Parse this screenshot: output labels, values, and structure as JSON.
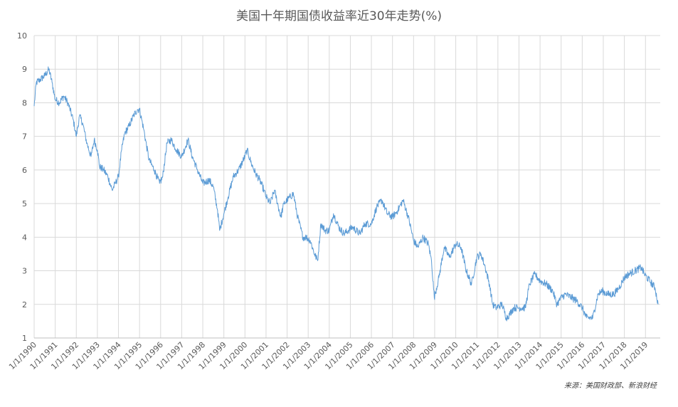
{
  "chart_data": {
    "type": "line",
    "title": "美国十年期国债收益率近30年走势(%)",
    "source": "来源：美国财政部、新浪财经",
    "xlabel": "",
    "ylabel": "",
    "ylim": [
      1,
      10
    ],
    "yticks": [
      "1",
      "2",
      "3",
      "4",
      "5",
      "6",
      "7",
      "8",
      "9",
      "10"
    ],
    "xlim": [
      1990.0,
      2019.7
    ],
    "xtick_labels": [
      "1/1/1990",
      "1/1/1991",
      "1/1/1992",
      "1/1/1993",
      "1/1/1994",
      "1/1/1995",
      "1/1/1996",
      "1/1/1997",
      "1/1/1998",
      "1/1/1999",
      "1/1/2000",
      "1/1/2001",
      "1/1/2002",
      "1/1/2003",
      "1/1/2004",
      "1/1/2005",
      "1/1/2006",
      "1/1/2007",
      "1/1/2008",
      "1/1/2009",
      "1/1/2010",
      "1/1/2011",
      "1/1/2012",
      "1/1/2013",
      "1/1/2014",
      "1/1/2015",
      "1/1/2016",
      "1/1/2017",
      "1/1/2018",
      "1/1/2019"
    ],
    "grid": true,
    "line_color": "#5b9bd5",
    "series": [
      {
        "name": "",
        "x": [
          1990.0,
          1990.1,
          1990.3,
          1990.5,
          1990.7,
          1990.85,
          1991.0,
          1991.2,
          1991.4,
          1991.6,
          1991.85,
          1992.0,
          1992.15,
          1992.3,
          1992.5,
          1992.7,
          1992.85,
          1993.0,
          1993.1,
          1993.3,
          1993.5,
          1993.7,
          1993.85,
          1994.0,
          1994.15,
          1994.3,
          1994.5,
          1994.7,
          1994.9,
          1995.0,
          1995.2,
          1995.45,
          1995.7,
          1995.95,
          1996.1,
          1996.3,
          1996.5,
          1996.75,
          1997.0,
          1997.3,
          1997.5,
          1997.75,
          1998.0,
          1998.3,
          1998.5,
          1998.7,
          1998.8,
          1999.0,
          1999.2,
          1999.45,
          1999.7,
          2000.0,
          2000.1,
          2000.3,
          2000.5,
          2000.7,
          2000.9,
          2001.0,
          2001.2,
          2001.4,
          2001.7,
          2001.85,
          2002.0,
          2002.3,
          2002.5,
          2002.75,
          2002.9,
          2003.1,
          2003.3,
          2003.45,
          2003.6,
          2003.8,
          2004.0,
          2004.2,
          2004.45,
          2004.7,
          2004.9,
          2005.1,
          2005.45,
          2005.7,
          2006.0,
          2006.25,
          2006.5,
          2006.75,
          2007.0,
          2007.25,
          2007.5,
          2007.75,
          2008.0,
          2008.2,
          2008.45,
          2008.7,
          2008.85,
          2008.98,
          2009.2,
          2009.45,
          2009.7,
          2010.0,
          2010.25,
          2010.5,
          2010.75,
          2011.0,
          2011.2,
          2011.4,
          2011.6,
          2011.75,
          2011.9,
          2012.2,
          2012.4,
          2012.55,
          2012.75,
          2013.0,
          2013.3,
          2013.5,
          2013.75,
          2014.0,
          2014.3,
          2014.6,
          2014.8,
          2015.0,
          2015.2,
          2015.5,
          2015.75,
          2016.0,
          2016.2,
          2016.5,
          2016.75,
          2016.95,
          2017.2,
          2017.5,
          2017.75,
          2018.0,
          2018.2,
          2018.5,
          2018.8,
          2018.95,
          2019.2,
          2019.45,
          2019.6
        ],
        "values": [
          7.9,
          8.6,
          8.7,
          8.8,
          9.0,
          8.6,
          8.1,
          8.0,
          8.2,
          8.0,
          7.5,
          7.0,
          7.6,
          7.4,
          6.8,
          6.4,
          6.9,
          6.6,
          6.1,
          6.0,
          5.8,
          5.4,
          5.6,
          5.8,
          6.6,
          7.1,
          7.3,
          7.6,
          7.8,
          7.8,
          7.2,
          6.3,
          6.0,
          5.6,
          5.8,
          6.8,
          6.9,
          6.6,
          6.4,
          6.9,
          6.4,
          6.0,
          5.6,
          5.7,
          5.5,
          4.8,
          4.2,
          4.7,
          5.2,
          5.8,
          6.0,
          6.4,
          6.6,
          6.2,
          5.9,
          5.7,
          5.4,
          5.2,
          5.0,
          5.4,
          4.6,
          5.0,
          5.1,
          5.3,
          4.6,
          4.0,
          4.0,
          3.9,
          3.5,
          3.3,
          4.4,
          4.2,
          4.2,
          4.7,
          4.3,
          4.1,
          4.2,
          4.3,
          4.1,
          4.4,
          4.4,
          4.9,
          5.1,
          4.7,
          4.6,
          4.8,
          5.1,
          4.6,
          3.9,
          3.7,
          4.0,
          3.8,
          3.3,
          2.2,
          2.8,
          3.7,
          3.4,
          3.8,
          3.7,
          3.0,
          2.6,
          3.4,
          3.5,
          3.1,
          2.6,
          2.0,
          1.9,
          2.0,
          1.6,
          1.7,
          1.9,
          1.9,
          1.9,
          2.6,
          2.9,
          2.7,
          2.6,
          2.4,
          2.0,
          2.2,
          2.3,
          2.2,
          2.1,
          1.9,
          1.6,
          1.6,
          2.3,
          2.4,
          2.3,
          2.3,
          2.5,
          2.8,
          2.9,
          3.0,
          3.1,
          2.9,
          2.7,
          2.5,
          2.0
        ]
      }
    ]
  }
}
